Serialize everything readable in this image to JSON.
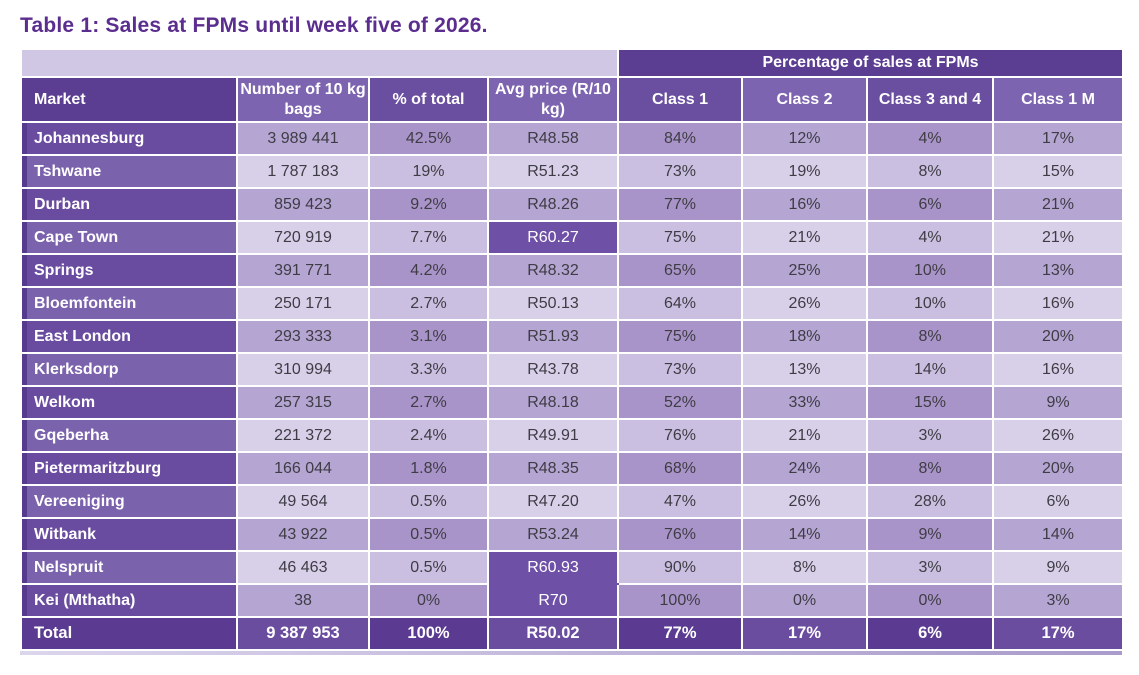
{
  "title": "Table 1: Sales at FPMs until week five of 2026.",
  "colors": {
    "title_purple": "#5b2d8e",
    "header_dark_purple": "#5b3d92",
    "highlight_purple": "#6e50a6",
    "band_lavender": "#cfc7e4"
  },
  "table": {
    "group_header": "Percentage of sales at FPMs",
    "columns": [
      "Market",
      "Number of 10 kg bags",
      "% of total",
      "Avg price (R/10 kg)",
      "Class 1",
      "Class 2",
      "Class 3 and 4",
      "Class 1 M"
    ],
    "rows": [
      {
        "market": "Johannesburg",
        "bags": "3 989 441",
        "pct_total": "42.5%",
        "avg_price": "R48.58",
        "class1": "84%",
        "class2": "12%",
        "class3_4": "4%",
        "class1m": "17%",
        "highlight_avg": false
      },
      {
        "market": "Tshwane",
        "bags": "1 787 183",
        "pct_total": "19%",
        "avg_price": "R51.23",
        "class1": "73%",
        "class2": "19%",
        "class3_4": "8%",
        "class1m": "15%",
        "highlight_avg": false
      },
      {
        "market": "Durban",
        "bags": "859 423",
        "pct_total": "9.2%",
        "avg_price": "R48.26",
        "class1": "77%",
        "class2": "16%",
        "class3_4": "6%",
        "class1m": "21%",
        "highlight_avg": false
      },
      {
        "market": "Cape Town",
        "bags": "720 919",
        "pct_total": "7.7%",
        "avg_price": "R60.27",
        "class1": "75%",
        "class2": "21%",
        "class3_4": "4%",
        "class1m": "21%",
        "highlight_avg": true
      },
      {
        "market": "Springs",
        "bags": "391 771",
        "pct_total": "4.2%",
        "avg_price": "R48.32",
        "class1": "65%",
        "class2": "25%",
        "class3_4": "10%",
        "class1m": "13%",
        "highlight_avg": false
      },
      {
        "market": "Bloemfontein",
        "bags": "250 171",
        "pct_total": "2.7%",
        "avg_price": "R50.13",
        "class1": "64%",
        "class2": "26%",
        "class3_4": "10%",
        "class1m": "16%",
        "highlight_avg": false
      },
      {
        "market": "East London",
        "bags": "293 333",
        "pct_total": "3.1%",
        "avg_price": "R51.93",
        "class1": "75%",
        "class2": "18%",
        "class3_4": "8%",
        "class1m": "20%",
        "highlight_avg": false
      },
      {
        "market": "Klerksdorp",
        "bags": "310 994",
        "pct_total": "3.3%",
        "avg_price": "R43.78",
        "class1": "73%",
        "class2": "13%",
        "class3_4": "14%",
        "class1m": "16%",
        "highlight_avg": false
      },
      {
        "market": "Welkom",
        "bags": "257 315",
        "pct_total": "2.7%",
        "avg_price": "R48.18",
        "class1": "52%",
        "class2": "33%",
        "class3_4": "15%",
        "class1m": "9%",
        "highlight_avg": false
      },
      {
        "market": "Gqeberha",
        "bags": "221 372",
        "pct_total": "2.4%",
        "avg_price": "R49.91",
        "class1": "76%",
        "class2": "21%",
        "class3_4": "3%",
        "class1m": "26%",
        "highlight_avg": false
      },
      {
        "market": "Pietermaritzburg",
        "bags": "166 044",
        "pct_total": "1.8%",
        "avg_price": "R48.35",
        "class1": "68%",
        "class2": "24%",
        "class3_4": "8%",
        "class1m": "20%",
        "highlight_avg": false
      },
      {
        "market": "Vereeniging",
        "bags": "49 564",
        "pct_total": "0.5%",
        "avg_price": "R47.20",
        "class1": "47%",
        "class2": "26%",
        "class3_4": "28%",
        "class1m": "6%",
        "highlight_avg": false
      },
      {
        "market": "Witbank",
        "bags": "43 922",
        "pct_total": "0.5%",
        "avg_price": "R53.24",
        "class1": "76%",
        "class2": "14%",
        "class3_4": "9%",
        "class1m": "14%",
        "highlight_avg": false
      },
      {
        "market": "Nelspruit",
        "bags": "46 463",
        "pct_total": "0.5%",
        "avg_price": "R60.93",
        "class1": "90%",
        "class2": "8%",
        "class3_4": "3%",
        "class1m": "9%",
        "highlight_avg": true
      },
      {
        "market": "Kei (Mthatha)",
        "bags": "38",
        "pct_total": "0%",
        "avg_price": "R70",
        "class1": "100%",
        "class2": "0%",
        "class3_4": "0%",
        "class1m": "3%",
        "highlight_avg": true
      }
    ],
    "total": {
      "label": "Total",
      "bags": "9 387 953",
      "pct_total": "100%",
      "avg_price": "R50.02",
      "class1": "77%",
      "class2": "17%",
      "class3_4": "6%",
      "class1m": "17%"
    }
  }
}
